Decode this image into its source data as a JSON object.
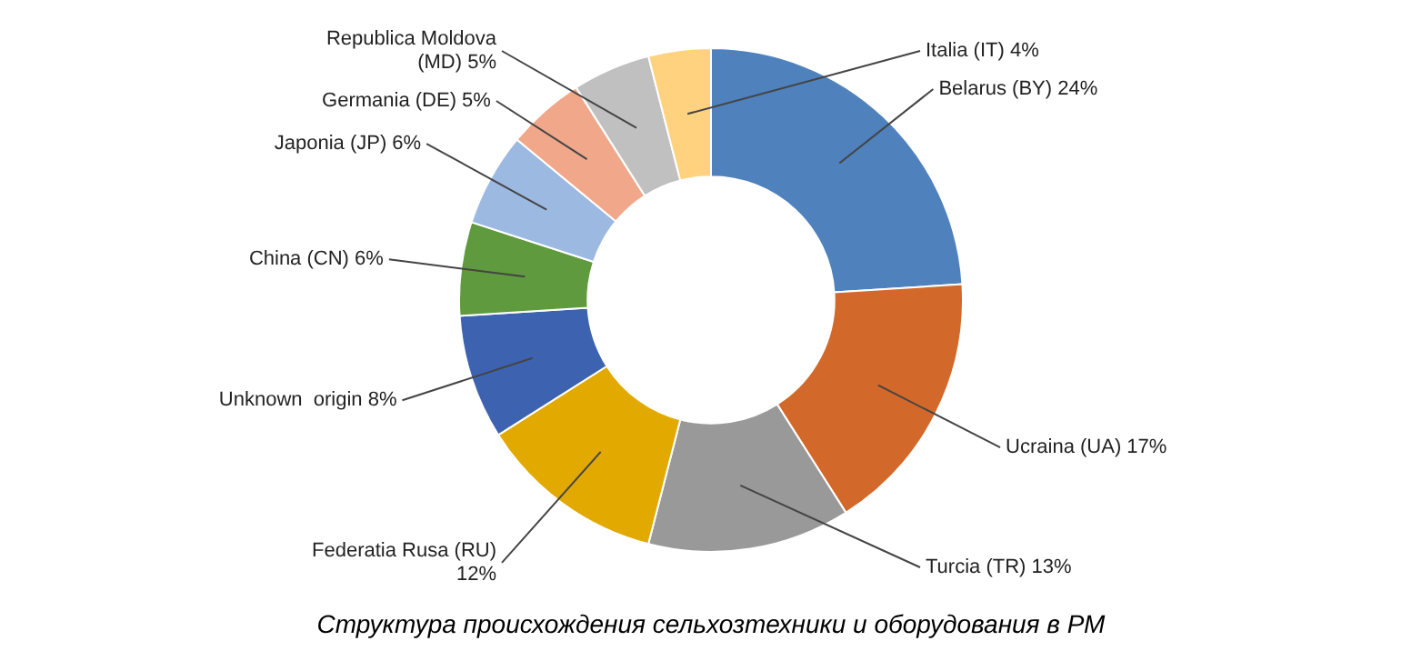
{
  "chart_data": {
    "type": "donut",
    "categories": [
      "Belarus (BY)",
      "Ucraina (UA)",
      "Turcia (TR)",
      "Federatia Rusa (RU)",
      "Unknown  origin",
      "China (CN)",
      "Japonia (JP)",
      "Germania (DE)",
      "Republica Moldova (MD)",
      "Italia (IT)"
    ],
    "values": [
      24,
      17,
      13,
      12,
      8,
      6,
      6,
      5,
      5,
      4
    ],
    "value_labels": [
      "24%",
      "17%",
      "13%",
      "12%",
      "8%",
      "6%",
      "6%",
      "5%",
      "5%",
      "4%"
    ],
    "colors": [
      "#4f81bd",
      "#d2692a",
      "#999999",
      "#e2aa00",
      "#3d63b0",
      "#5f9a3e",
      "#9cb9e2",
      "#f1a88a",
      "#c0c0c0",
      "#ffd27f"
    ],
    "legend": false,
    "annotations": [
      "Структура происхождения сельхозтехники и оборудования в РМ"
    ]
  }
}
